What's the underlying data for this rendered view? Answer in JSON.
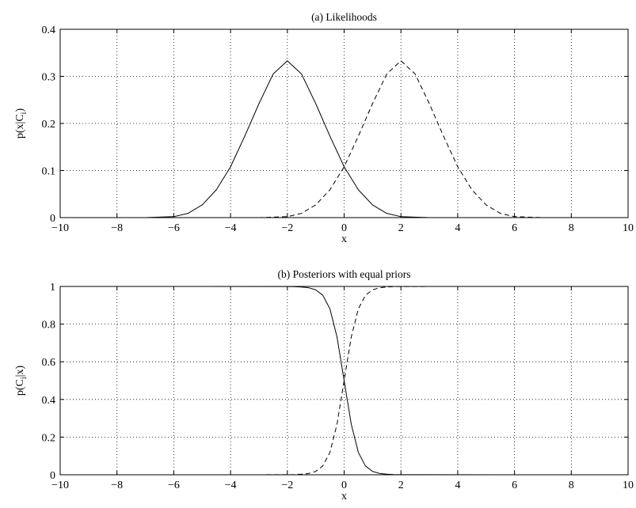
{
  "chart_data": [
    {
      "type": "line",
      "title": "(a) Likelihoods",
      "xlabel": "x",
      "ylabel": "p(x|C",
      "ylabel_sub": "i",
      "ylabel_suffix": ")",
      "xlim": [
        -10,
        10
      ],
      "ylim": [
        0,
        0.4
      ],
      "xticks": [
        -10,
        -8,
        -6,
        -4,
        -2,
        0,
        2,
        4,
        6,
        8,
        10
      ],
      "yticks": [
        0,
        0.1,
        0.2,
        0.3,
        0.4
      ],
      "ytick_labels": [
        "0",
        "0.1",
        "0.2",
        "0.3",
        "0.4"
      ],
      "grid": true,
      "grid_style": "dotted",
      "series": [
        {
          "line_style": "solid",
          "x": [
            -10,
            -8,
            -7,
            -6,
            -5.5,
            -5,
            -4.5,
            -4,
            -3.5,
            -3,
            -2.5,
            -2,
            -1.5,
            -1,
            -0.5,
            0,
            0.5,
            1,
            1.5,
            2,
            3,
            4,
            6,
            10
          ],
          "y": [
            0,
            0,
            0,
            0.002,
            0.009,
            0.027,
            0.059,
            0.108,
            0.173,
            0.242,
            0.305,
            0.333,
            0.305,
            0.242,
            0.173,
            0.108,
            0.059,
            0.027,
            0.009,
            0.002,
            0,
            0,
            0,
            0
          ]
        },
        {
          "line_style": "dashed",
          "x": [
            -10,
            -6,
            -4,
            -3,
            -2,
            -1.5,
            -1,
            -0.5,
            0,
            0.5,
            1,
            1.5,
            2,
            2.5,
            3,
            3.5,
            4,
            4.5,
            5,
            5.5,
            6,
            7,
            8,
            10
          ],
          "y": [
            0,
            0,
            0,
            0,
            0.002,
            0.009,
            0.027,
            0.059,
            0.108,
            0.173,
            0.242,
            0.305,
            0.333,
            0.305,
            0.242,
            0.173,
            0.108,
            0.059,
            0.027,
            0.009,
            0.002,
            0,
            0,
            0
          ]
        }
      ]
    },
    {
      "type": "line",
      "title": "(b) Posteriors with equal priors",
      "xlabel": "x",
      "ylabel": "p(C",
      "ylabel_sub": "i",
      "ylabel_suffix": "|x)",
      "xlim": [
        -10,
        10
      ],
      "ylim": [
        0,
        1
      ],
      "xticks": [
        -10,
        -8,
        -6,
        -4,
        -2,
        0,
        2,
        4,
        6,
        8,
        10
      ],
      "yticks": [
        0,
        0.2,
        0.4,
        0.6,
        0.8,
        1
      ],
      "ytick_labels": [
        "0",
        "0.2",
        "0.4",
        "0.6",
        "0.8",
        "1"
      ],
      "grid": true,
      "grid_style": "dotted",
      "series": [
        {
          "line_style": "solid",
          "x": [
            -10,
            -2,
            -1.75,
            -1.5,
            -1.25,
            -1,
            -0.75,
            -0.5,
            -0.25,
            0,
            0.25,
            0.5,
            0.75,
            1,
            1.25,
            1.5,
            1.75,
            2,
            10
          ],
          "y": [
            1,
            0.9997,
            0.999,
            0.997,
            0.993,
            0.982,
            0.953,
            0.881,
            0.731,
            0.5,
            0.269,
            0.119,
            0.047,
            0.018,
            0.007,
            0.003,
            0.001,
            0.0003,
            0
          ]
        },
        {
          "line_style": "dashed",
          "x": [
            -10,
            -2,
            -1.75,
            -1.5,
            -1.25,
            -1,
            -0.75,
            -0.5,
            -0.25,
            0,
            0.25,
            0.5,
            0.75,
            1,
            1.25,
            1.5,
            1.75,
            2,
            10
          ],
          "y": [
            0,
            0.0003,
            0.001,
            0.003,
            0.007,
            0.018,
            0.047,
            0.119,
            0.269,
            0.5,
            0.731,
            0.881,
            0.953,
            0.982,
            0.993,
            0.997,
            0.999,
            0.9997,
            1
          ]
        }
      ]
    }
  ]
}
